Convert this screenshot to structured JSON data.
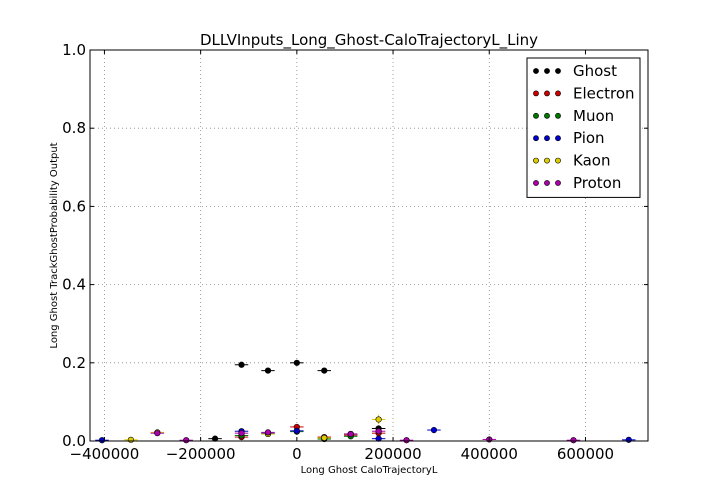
{
  "chart_data": {
    "type": "scatter",
    "title": "DLLVInputs_Long_Ghost-CaloTrajectoryL_Liny",
    "xlabel": "Long Ghost CaloTrajectoryL",
    "ylabel": "Long Ghost TrackGhostProbability Output",
    "xlim": [
      -430000,
      730000
    ],
    "ylim": [
      0.0,
      1.0
    ],
    "xticks": [
      -400000,
      -200000,
      0,
      200000,
      400000,
      600000
    ],
    "xtick_labels": [
      "−400000",
      "−200000",
      "0",
      "200000",
      "400000",
      "600000"
    ],
    "yticks": [
      0.0,
      0.2,
      0.4,
      0.6,
      0.8,
      1.0
    ],
    "ytick_labels": [
      "0.0",
      "0.2",
      "0.4",
      "0.6",
      "0.8",
      "1.0"
    ],
    "grid": true,
    "legend_position": "top-right",
    "series": [
      {
        "name": "Ghost",
        "color": "#000000",
        "points": [
          {
            "x": -115000,
            "y": 0.195,
            "xerr": 14000,
            "yerr": 0.005
          },
          {
            "x": -60000,
            "y": 0.18,
            "xerr": 14000,
            "yerr": 0.005
          },
          {
            "x": 0,
            "y": 0.2,
            "xerr": 14000,
            "yerr": 0.005
          },
          {
            "x": 57000,
            "y": 0.18,
            "xerr": 14000,
            "yerr": 0.005
          },
          {
            "x": 112000,
            "y": 0.018,
            "xerr": 14000,
            "yerr": 0.004
          },
          {
            "x": 170000,
            "y": 0.032,
            "xerr": 14000,
            "yerr": 0.005
          },
          {
            "x": -170000,
            "y": 0.006,
            "xerr": 14000,
            "yerr": 0.003
          }
        ]
      },
      {
        "name": "Electron",
        "color": "#cc0000",
        "points": [
          {
            "x": 0,
            "y": 0.036,
            "xerr": 14000,
            "yerr": 0.005
          },
          {
            "x": 57000,
            "y": 0.01,
            "xerr": 14000,
            "yerr": 0.003
          },
          {
            "x": 112000,
            "y": 0.015,
            "xerr": 14000,
            "yerr": 0.004
          },
          {
            "x": 170000,
            "y": 0.02,
            "xerr": 14000,
            "yerr": 0.005
          },
          {
            "x": -115000,
            "y": 0.01,
            "xerr": 14000,
            "yerr": 0.003
          }
        ]
      },
      {
        "name": "Muon",
        "color": "#007700",
        "points": [
          {
            "x": -115000,
            "y": 0.014,
            "xerr": 14000,
            "yerr": 0.003
          },
          {
            "x": -60000,
            "y": 0.018,
            "xerr": 14000,
            "yerr": 0.003
          },
          {
            "x": 0,
            "y": 0.024,
            "xerr": 14000,
            "yerr": 0.004
          },
          {
            "x": 57000,
            "y": 0.005,
            "xerr": 14000,
            "yerr": 0.002
          },
          {
            "x": 112000,
            "y": 0.012,
            "xerr": 14000,
            "yerr": 0.003
          }
        ]
      },
      {
        "name": "Pion",
        "color": "#0000cc",
        "points": [
          {
            "x": -405000,
            "y": 0.002,
            "xerr": 14000,
            "yerr": 0.002
          },
          {
            "x": -115000,
            "y": 0.025,
            "xerr": 14000,
            "yerr": 0.004
          },
          {
            "x": -60000,
            "y": 0.02,
            "xerr": 14000,
            "yerr": 0.004
          },
          {
            "x": 0,
            "y": 0.026,
            "xerr": 14000,
            "yerr": 0.004
          },
          {
            "x": 170000,
            "y": 0.006,
            "xerr": 14000,
            "yerr": 0.003
          },
          {
            "x": 285000,
            "y": 0.028,
            "xerr": 14000,
            "yerr": 0.008
          },
          {
            "x": 690000,
            "y": 0.003,
            "xerr": 14000,
            "yerr": 0.002
          }
        ]
      },
      {
        "name": "Kaon",
        "color": "#ddcc00",
        "points": [
          {
            "x": -345000,
            "y": 0.003,
            "xerr": 14000,
            "yerr": 0.002
          },
          {
            "x": -290000,
            "y": 0.022,
            "xerr": 14000,
            "yerr": 0.005
          },
          {
            "x": -60000,
            "y": 0.018,
            "xerr": 14000,
            "yerr": 0.004
          },
          {
            "x": 57000,
            "y": 0.008,
            "xerr": 14000,
            "yerr": 0.003
          },
          {
            "x": 170000,
            "y": 0.055,
            "xerr": 14000,
            "yerr": 0.012
          }
        ]
      },
      {
        "name": "Proton",
        "color": "#aa00aa",
        "points": [
          {
            "x": -290000,
            "y": 0.02,
            "xerr": 14000,
            "yerr": 0.004
          },
          {
            "x": -230000,
            "y": 0.002,
            "xerr": 14000,
            "yerr": 0.002
          },
          {
            "x": -115000,
            "y": 0.02,
            "xerr": 14000,
            "yerr": 0.004
          },
          {
            "x": -60000,
            "y": 0.022,
            "xerr": 14000,
            "yerr": 0.004
          },
          {
            "x": 112000,
            "y": 0.018,
            "xerr": 14000,
            "yerr": 0.004
          },
          {
            "x": 170000,
            "y": 0.025,
            "xerr": 14000,
            "yerr": 0.005
          },
          {
            "x": 228000,
            "y": 0.002,
            "xerr": 14000,
            "yerr": 0.002
          },
          {
            "x": 400000,
            "y": 0.004,
            "xerr": 14000,
            "yerr": 0.002
          },
          {
            "x": 575000,
            "y": 0.002,
            "xerr": 14000,
            "yerr": 0.002
          }
        ]
      }
    ]
  }
}
